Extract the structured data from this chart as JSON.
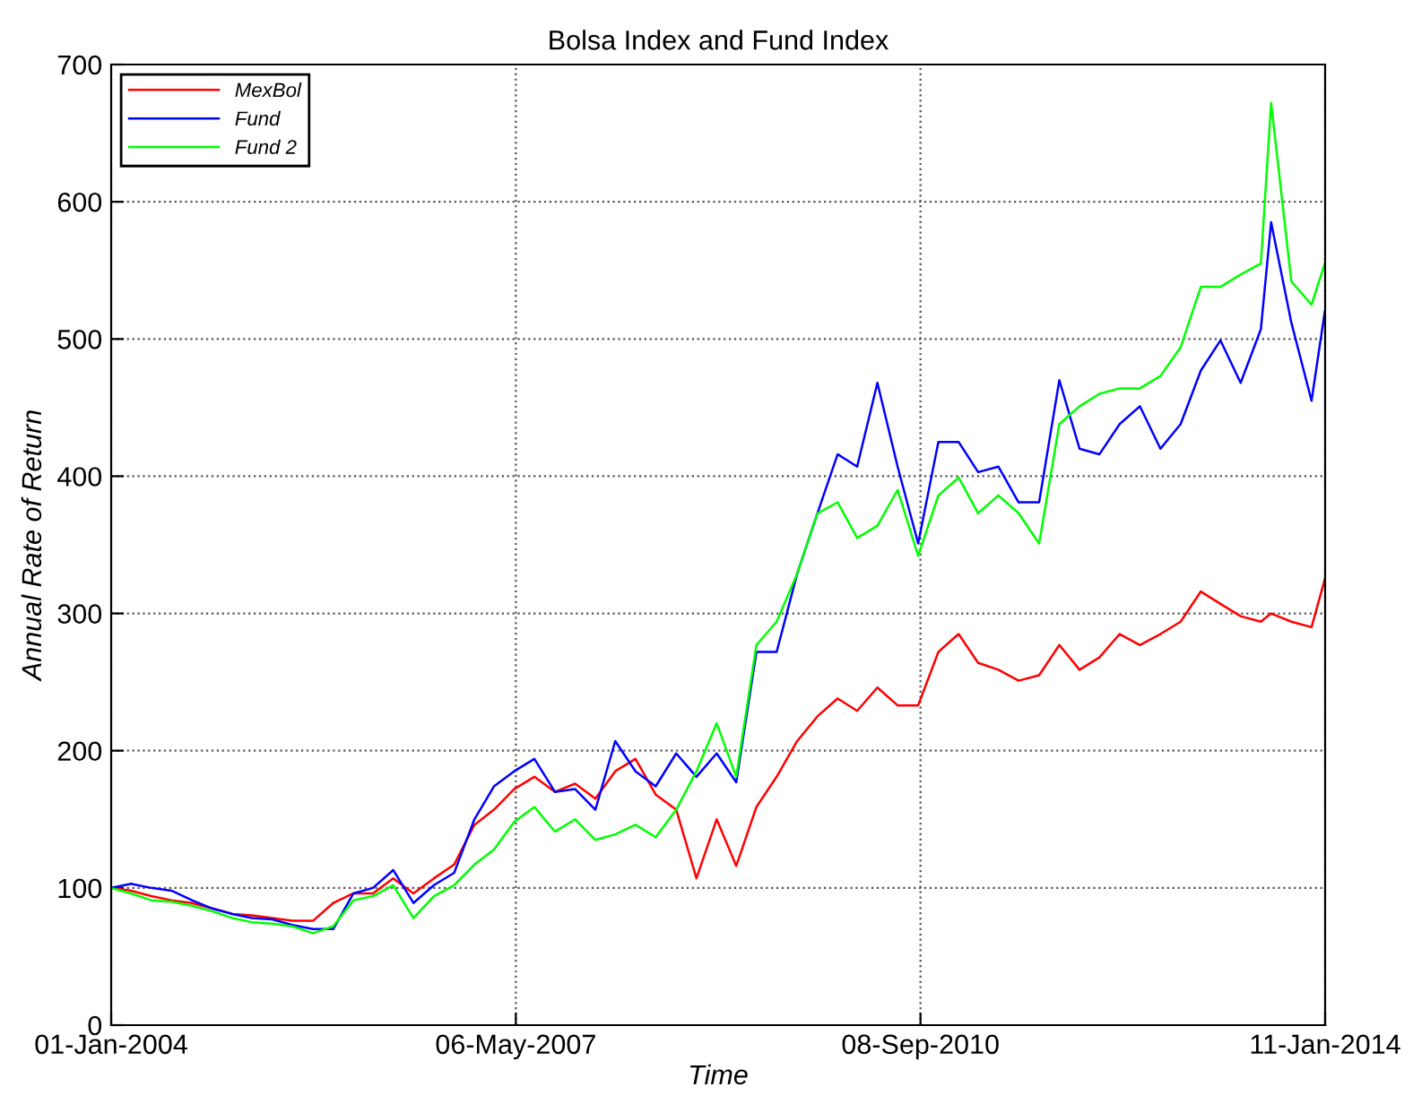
{
  "chart_data": {
    "type": "line",
    "title": "Bolsa Index and Fund Index",
    "xlabel": "Time",
    "ylabel": "Annual Rate of Return",
    "x": [
      "2004-01",
      "2004-03",
      "2004-05",
      "2004-07",
      "2004-09",
      "2004-11",
      "2005-01",
      "2005-03",
      "2005-05",
      "2005-07",
      "2005-09",
      "2005-11",
      "2006-01",
      "2006-03",
      "2006-05",
      "2006-07",
      "2006-09",
      "2006-11",
      "2007-01",
      "2007-03",
      "2007-05",
      "2007-07",
      "2007-09",
      "2007-11",
      "2008-01",
      "2008-03",
      "2008-05",
      "2008-07",
      "2008-09",
      "2008-11",
      "2009-01",
      "2009-03",
      "2009-05",
      "2009-07",
      "2009-09",
      "2009-11",
      "2010-01",
      "2010-03",
      "2010-05",
      "2010-07",
      "2010-09",
      "2010-11",
      "2011-01",
      "2011-03",
      "2011-05",
      "2011-07",
      "2011-09",
      "2011-11",
      "2012-01",
      "2012-03",
      "2012-05",
      "2012-07",
      "2012-09",
      "2012-11",
      "2013-01",
      "2013-03",
      "2013-05",
      "2013-07",
      "2013-08",
      "2013-10",
      "2013-12",
      "2014-01-10"
    ],
    "series": [
      {
        "name": "MexBol",
        "color": "#ff0000",
        "values": [
          100,
          98,
          94,
          91,
          89,
          85,
          81,
          80,
          78,
          76,
          76,
          89,
          96,
          96,
          107,
          96,
          107,
          117,
          146,
          157,
          172,
          181,
          170,
          176,
          165,
          185,
          194,
          168,
          157,
          107,
          150,
          116,
          159,
          181,
          207,
          225,
          238,
          229,
          246,
          233,
          233,
          272,
          285,
          264,
          259,
          251,
          255,
          277,
          259,
          268,
          285,
          277,
          285,
          294,
          316,
          307,
          298,
          294,
          300,
          294,
          290,
          325
        ]
      },
      {
        "name": "Fund",
        "color": "#0000ff",
        "values": [
          100,
          103,
          100,
          98,
          91,
          85,
          81,
          78,
          77,
          73,
          70,
          70,
          96,
          100,
          113,
          89,
          102,
          111,
          150,
          174,
          185,
          194,
          170,
          172,
          157,
          207,
          185,
          174,
          198,
          181,
          198,
          177,
          272,
          272,
          329,
          373,
          416,
          407,
          468,
          407,
          351,
          425,
          425,
          403,
          407,
          381,
          381,
          470,
          420,
          416,
          438,
          451,
          420,
          438,
          477,
          499,
          468,
          507,
          585,
          512,
          455,
          520
        ]
      },
      {
        "name": "Fund 2",
        "color": "#00ff00",
        "values": [
          100,
          96,
          91,
          90,
          87,
          83,
          78,
          75,
          74,
          72,
          67,
          72,
          91,
          94,
          102,
          78,
          94,
          102,
          117,
          128,
          148,
          159,
          141,
          150,
          135,
          139,
          146,
          137,
          157,
          185,
          220,
          181,
          277,
          294,
          329,
          373,
          381,
          355,
          364,
          390,
          342,
          386,
          399,
          373,
          386,
          373,
          351,
          438,
          451,
          460,
          464,
          464,
          473,
          494,
          538,
          538,
          547,
          555,
          672,
          542,
          525,
          555
        ]
      }
    ],
    "xlim": [
      "2004-01-01",
      "2014-01-11"
    ],
    "xticks": [
      {
        "value": "2004-01-01",
        "label": "01-Jan-2004"
      },
      {
        "value": "2007-05-06",
        "label": "06-May-2007"
      },
      {
        "value": "2010-09-08",
        "label": "08-Sep-2010"
      },
      {
        "value": "2014-01-11",
        "label": "11-Jan-2014"
      }
    ],
    "ylim": [
      0,
      700
    ],
    "yticks": [
      0,
      100,
      200,
      300,
      400,
      500,
      600,
      700
    ],
    "grid": true,
    "legend": "top left",
    "marker": "none",
    "line_style": "solid"
  }
}
